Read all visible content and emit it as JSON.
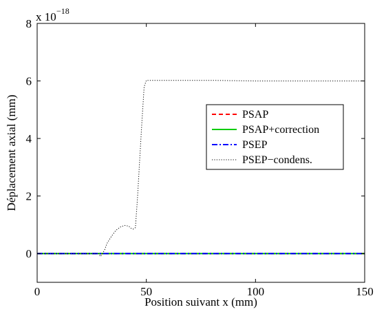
{
  "chart_data": {
    "type": "line",
    "xlabel": "Position suivant  x (mm)",
    "ylabel": "Déplacement axial (mm)",
    "y_scale_multiplier": {
      "base": "x 10",
      "exponent": "−18"
    },
    "xlim": [
      0,
      150
    ],
    "ylim": [
      -1,
      8
    ],
    "x_ticks": [
      0,
      50,
      100,
      150
    ],
    "y_ticks": [
      0,
      2,
      4,
      6,
      8
    ],
    "x_tick_labels": [
      "0",
      "50",
      "100",
      "150"
    ],
    "y_tick_labels": [
      "0",
      "2",
      "4",
      "6",
      "8"
    ],
    "grid": false,
    "legend_position": "upper-right",
    "series": [
      {
        "name": "PSAP",
        "color": "#ff0000",
        "style": "dashed",
        "x": [
          0,
          150
        ],
        "y": [
          0,
          0
        ]
      },
      {
        "name": "PSAP+correction",
        "color": "#00cc00",
        "style": "solid",
        "x": [
          0,
          150
        ],
        "y": [
          0,
          0
        ]
      },
      {
        "name": "PSEP",
        "color": "#0000ff",
        "style": "dashdot",
        "x": [
          0,
          150
        ],
        "y": [
          0,
          0
        ]
      },
      {
        "name": "PSEP−condens.",
        "color": "#000000",
        "style": "dotted",
        "x": [
          0,
          28,
          29,
          30,
          31,
          32,
          34,
          36,
          38,
          40,
          42,
          43,
          44,
          45,
          46,
          47,
          48,
          49,
          50,
          60,
          80,
          100,
          120,
          140,
          150
        ],
        "y": [
          0,
          0,
          -0.1,
          0,
          0.15,
          0.35,
          0.6,
          0.8,
          0.92,
          0.98,
          0.95,
          0.88,
          0.85,
          0.9,
          2.0,
          3.3,
          4.6,
          5.8,
          6.02,
          6.02,
          6.02,
          6.0,
          6.0,
          6.0,
          6.0
        ]
      }
    ]
  }
}
